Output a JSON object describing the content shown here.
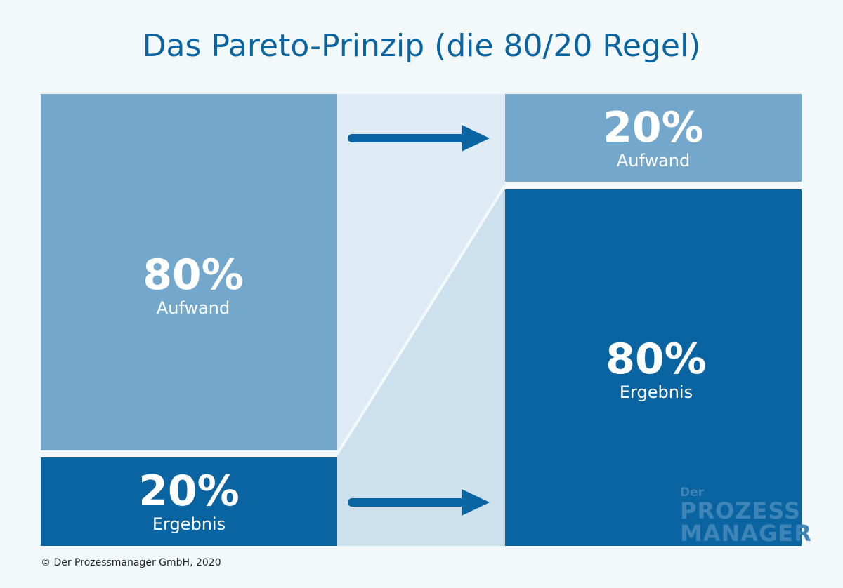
{
  "title": "Das Pareto-Prinzip (die 80/20 Regel)",
  "colors": {
    "light_block": "#73a7cc",
    "dark_block": "#0a64a2",
    "middle_upper": "#deebf4",
    "middle_lower": "#cde0ee",
    "background": "#f3f8fb"
  },
  "left": {
    "top": {
      "percent": "80%",
      "label": "Aufwand"
    },
    "bottom": {
      "percent": "20%",
      "label": "Ergebnis"
    }
  },
  "right": {
    "top": {
      "percent": "20%",
      "label": "Aufwand"
    },
    "bottom": {
      "percent": "80%",
      "label": "Ergebnis"
    }
  },
  "logo": {
    "line1": "Der",
    "line2": "PROZESS",
    "line3": "MANAGER"
  },
  "copyright": "© Der Prozessmanager GmbH, 2020"
}
